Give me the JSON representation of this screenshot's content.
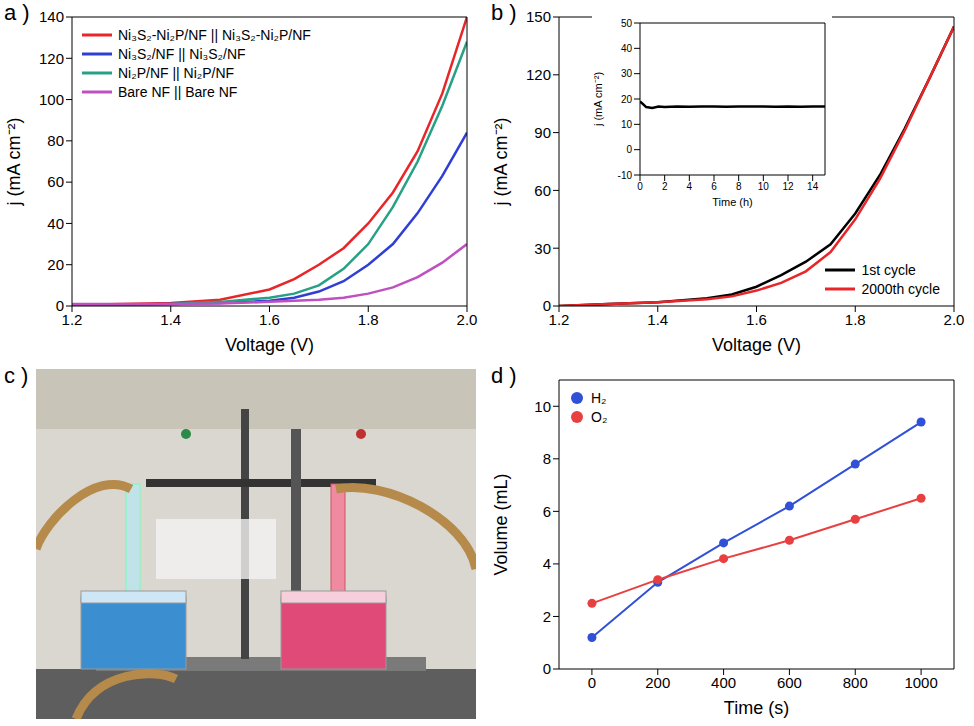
{
  "chart_data": [
    {
      "type": "line",
      "panel_label": "a )",
      "x_label": "Voltage (V)",
      "y_label": "j (mA cm⁻²)",
      "x": [
        1.2,
        1.3,
        1.4,
        1.5,
        1.6,
        1.65,
        1.7,
        1.75,
        1.8,
        1.85,
        1.9,
        1.95,
        2.0
      ],
      "xlim": [
        1.2,
        2.0
      ],
      "xticks": [
        1.2,
        1.4,
        1.6,
        1.8,
        {
          "value": 2,
          "label": "2.0"
        }
      ],
      "ylim": [
        0,
        140
      ],
      "yticks": [
        0,
        20,
        40,
        60,
        80,
        100,
        120,
        140
      ],
      "grid": false,
      "legend": "upper left",
      "line_style": "solid",
      "series": [
        {
          "name": "Ni₃S₂-Ni₂P/NF || Ni₃S₂-Ni₂P/NF",
          "color": "#e8262a",
          "values": [
            0.5,
            1,
            1.5,
            3,
            8,
            13,
            20,
            28,
            40,
            55,
            75,
            103,
            140
          ]
        },
        {
          "name": "Ni₃S₂/NF || Ni₃S₂/NF",
          "color": "#2f3fd6",
          "values": [
            0.5,
            0.7,
            1,
            1.5,
            2.5,
            4,
            7,
            12,
            20,
            30,
            45,
            63,
            84
          ]
        },
        {
          "name": "Ni₂P/NF || Ni₂P/NF",
          "color": "#26a185",
          "values": [
            0.3,
            0.6,
            1,
            2,
            4,
            6,
            10,
            18,
            30,
            48,
            70,
            97,
            128
          ]
        },
        {
          "name": "Bare NF || Bare NF",
          "color": "#c050c0",
          "values": [
            1,
            1,
            1,
            1.2,
            2,
            2.5,
            3,
            4,
            6,
            9,
            14,
            21,
            30
          ]
        }
      ]
    },
    {
      "type": "line",
      "panel_label": "b )",
      "x_label": "Voltage (V)",
      "y_label": "j (mA cm⁻²)",
      "x": [
        1.2,
        1.3,
        1.4,
        1.5,
        1.55,
        1.6,
        1.65,
        1.7,
        1.75,
        1.8,
        1.85,
        1.9,
        1.95,
        2.0
      ],
      "xlim": [
        1.2,
        2.0
      ],
      "xticks": [
        1.2,
        1.4,
        1.6,
        1.8,
        {
          "value": 2,
          "label": "2.0"
        }
      ],
      "ylim": [
        0,
        150
      ],
      "yticks": [
        0,
        30,
        60,
        90,
        120,
        150
      ],
      "grid": false,
      "legend": "lower right",
      "line_style": "solid",
      "series": [
        {
          "name": "1st cycle",
          "color": "#000000",
          "values": [
            0,
            1,
            2,
            4,
            6,
            10,
            16,
            23,
            32,
            48,
            68,
            92,
            118,
            145
          ]
        },
        {
          "name": "2000th cycle",
          "color": "#e8262a",
          "values": [
            0,
            1,
            2,
            3.5,
            5,
            8,
            12,
            18,
            28,
            45,
            66,
            91,
            118,
            145
          ]
        }
      ],
      "inset": {
        "type": "line",
        "x_label": "Time (h)",
        "y_label": "j (mA cm⁻²)",
        "x": [
          0,
          0.25,
          0.5,
          1,
          1.5,
          2,
          3,
          4,
          5,
          6,
          7,
          8,
          9,
          10,
          11,
          12,
          13,
          14,
          15
        ],
        "xlim": [
          0,
          15
        ],
        "xticks": [
          0,
          2,
          4,
          6,
          8,
          10,
          12,
          14
        ],
        "ylim": [
          -10,
          50
        ],
        "yticks": [
          -10,
          0,
          10,
          20,
          30,
          40,
          50
        ],
        "grid": false,
        "line_style": "solid",
        "series": [
          {
            "color": "#000000",
            "values": [
              19,
              18,
              16.8,
              16.5,
              17,
              16.8,
              17,
              16.9,
              17,
              17,
              16.9,
              17,
              17,
              17,
              16.9,
              17,
              16.9,
              17,
              17
            ]
          }
        ]
      }
    },
    {
      "type": "photo",
      "panel_label": "c )"
    },
    {
      "type": "scatter",
      "panel_label": "d )",
      "x_label": "Time (s)",
      "y_label": "Volume (mL)",
      "x": [
        0,
        200,
        400,
        600,
        800,
        1000
      ],
      "xlim": [
        -100,
        1100
      ],
      "xticks": [
        0,
        200,
        400,
        600,
        800,
        1000
      ],
      "ylim": [
        0,
        11
      ],
      "yticks": [
        0,
        2,
        4,
        6,
        8,
        10
      ],
      "grid": false,
      "legend": "upper left",
      "marker": "circle",
      "line_style": "solid",
      "series": [
        {
          "name": "H₂",
          "color": "#3050d8",
          "values": [
            1.2,
            3.3,
            4.8,
            6.2,
            7.8,
            9.4
          ]
        },
        {
          "name": "O₂",
          "color": "#e84040",
          "values": [
            2.5,
            3.4,
            4.2,
            4.9,
            5.7,
            6.5
          ]
        }
      ]
    }
  ]
}
